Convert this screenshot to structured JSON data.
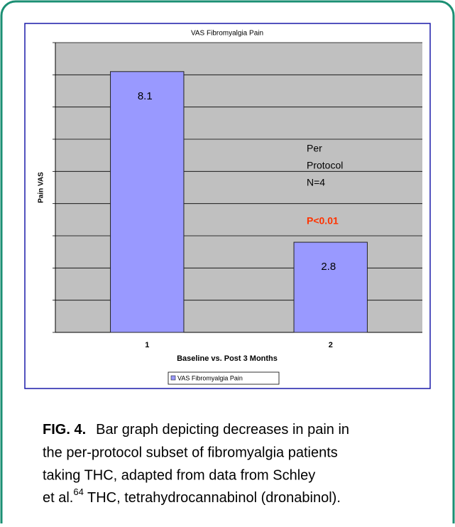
{
  "chart_data": {
    "type": "bar",
    "title": "VAS Fibromyalgia Pain",
    "x_label": "Baseline vs. Post 3 Months",
    "y_label": "Pain VAS",
    "categories": [
      "1",
      "2"
    ],
    "series": [
      {
        "name": "VAS Fibromyalgia Pain",
        "color": "#9999ff",
        "values": [
          8.1,
          2.8
        ]
      }
    ],
    "ylim": [
      0,
      9
    ],
    "yticks": [
      0,
      1,
      2,
      3,
      4,
      5,
      6,
      7,
      8,
      9
    ],
    "grid": true,
    "legend": "bottom",
    "annotation_lines": [
      "Per",
      "Protocol",
      "N=4"
    ],
    "significance": "P<0.01"
  },
  "caption": {
    "label": "FIG. 4.",
    "lines": [
      "Bar graph depicting decreases in pain in",
      "the per-protocol subset of fibromyalgia patients",
      "taking THC, adapted from data from Schley",
      "et al."
    ],
    "superscript": "64",
    "after": " THC, tetrahydrocannabinol (dronabinol)."
  }
}
